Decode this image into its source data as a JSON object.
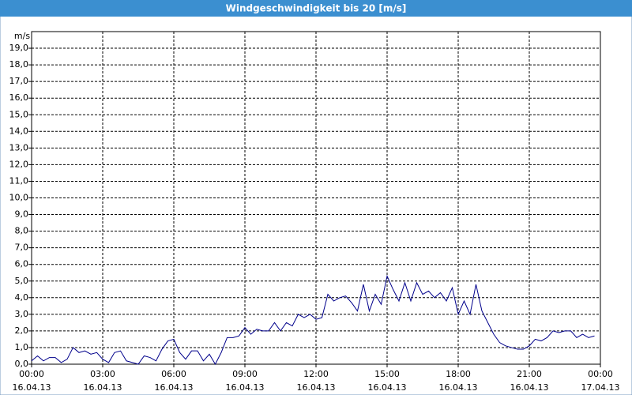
{
  "chart_data": {
    "type": "line",
    "title": "Windgeschwindigkeit bis 20 [m/s]",
    "y_label": "m/s",
    "color": "#00008b",
    "grid": true,
    "xlim": [
      0,
      24
    ],
    "ylim": [
      0,
      20
    ],
    "xticks": [
      {
        "value": 0,
        "label": "00:00"
      },
      {
        "value": 3,
        "label": "03:00"
      },
      {
        "value": 6,
        "label": "06:00"
      },
      {
        "value": 9,
        "label": "09:00"
      },
      {
        "value": 12,
        "label": "12:00"
      },
      {
        "value": 15,
        "label": "15:00"
      },
      {
        "value": 18,
        "label": "18:00"
      },
      {
        "value": 21,
        "label": "21:00"
      },
      {
        "value": 24,
        "label": "00:00"
      }
    ],
    "xtick_dates": [
      "16.04.13",
      "16.04.13",
      "16.04.13",
      "16.04.13",
      "16.04.13",
      "16.04.13",
      "16.04.13",
      "16.04.13",
      "17.04.13"
    ],
    "yticks": [
      {
        "value": 0,
        "label": "0,0"
      },
      {
        "value": 1,
        "label": "1,0"
      },
      {
        "value": 2,
        "label": "2,0"
      },
      {
        "value": 3,
        "label": "3,0"
      },
      {
        "value": 4,
        "label": "4,0"
      },
      {
        "value": 5,
        "label": "5,0"
      },
      {
        "value": 6,
        "label": "6,0"
      },
      {
        "value": 7,
        "label": "7,0"
      },
      {
        "value": 8,
        "label": "8,0"
      },
      {
        "value": 9,
        "label": "9,0"
      },
      {
        "value": 10,
        "label": "10,0"
      },
      {
        "value": 11,
        "label": "11,0"
      },
      {
        "value": 12,
        "label": "12,0"
      },
      {
        "value": 13,
        "label": "13,0"
      },
      {
        "value": 14,
        "label": "14,0"
      },
      {
        "value": 15,
        "label": "15,0"
      },
      {
        "value": 16,
        "label": "16,0"
      },
      {
        "value": 17,
        "label": "17,0"
      },
      {
        "value": 18,
        "label": "18,0"
      },
      {
        "value": 19,
        "label": "19,0"
      }
    ],
    "x": [
      0,
      0.25,
      0.5,
      0.75,
      1,
      1.25,
      1.5,
      1.75,
      2,
      2.25,
      2.5,
      2.75,
      3,
      3.25,
      3.5,
      3.75,
      4,
      4.25,
      4.5,
      4.75,
      5,
      5.25,
      5.5,
      5.75,
      6,
      6.25,
      6.5,
      6.75,
      7,
      7.25,
      7.5,
      7.75,
      8,
      8.25,
      8.5,
      8.75,
      9,
      9.25,
      9.5,
      9.75,
      10,
      10.25,
      10.5,
      10.75,
      11,
      11.25,
      11.5,
      11.75,
      12,
      12.25,
      12.5,
      12.75,
      13,
      13.25,
      13.5,
      13.75,
      14,
      14.25,
      14.5,
      14.75,
      15,
      15.25,
      15.5,
      15.75,
      16,
      16.25,
      16.5,
      16.75,
      17,
      17.25,
      17.5,
      17.75,
      18,
      18.25,
      18.5,
      18.75,
      19,
      19.25,
      19.5,
      19.75,
      20,
      20.25,
      20.5,
      20.75,
      21,
      21.25,
      21.5,
      21.75,
      22,
      22.25,
      22.5,
      22.75,
      23,
      23.25,
      23.5,
      23.75
    ],
    "values": [
      0.2,
      0.5,
      0.2,
      0.4,
      0.4,
      0.1,
      0.3,
      1.0,
      0.7,
      0.8,
      0.6,
      0.7,
      0.3,
      0.1,
      0.7,
      0.8,
      0.2,
      0.1,
      0.0,
      0.5,
      0.4,
      0.2,
      0.9,
      1.4,
      1.5,
      0.7,
      0.3,
      0.8,
      0.8,
      0.2,
      0.6,
      0.0,
      0.7,
      1.6,
      1.6,
      1.7,
      2.2,
      1.8,
      2.1,
      2.0,
      2.0,
      2.5,
      2.0,
      2.5,
      2.3,
      3.0,
      2.8,
      3.0,
      2.7,
      2.8,
      4.2,
      3.8,
      4.0,
      4.1,
      3.7,
      3.2,
      4.8,
      3.2,
      4.2,
      3.6,
      5.3,
      4.5,
      3.8,
      4.9,
      3.8,
      4.9,
      4.2,
      4.4,
      4.0,
      4.3,
      3.8,
      4.6,
      3.0,
      3.8,
      3.0,
      4.8,
      3.2,
      2.5,
      1.8,
      1.3,
      1.1,
      1.0,
      0.9,
      0.9,
      1.1,
      1.5,
      1.4,
      1.6,
      2.0,
      1.9,
      2.0,
      2.0,
      1.6,
      1.8,
      1.6,
      1.7
    ]
  }
}
